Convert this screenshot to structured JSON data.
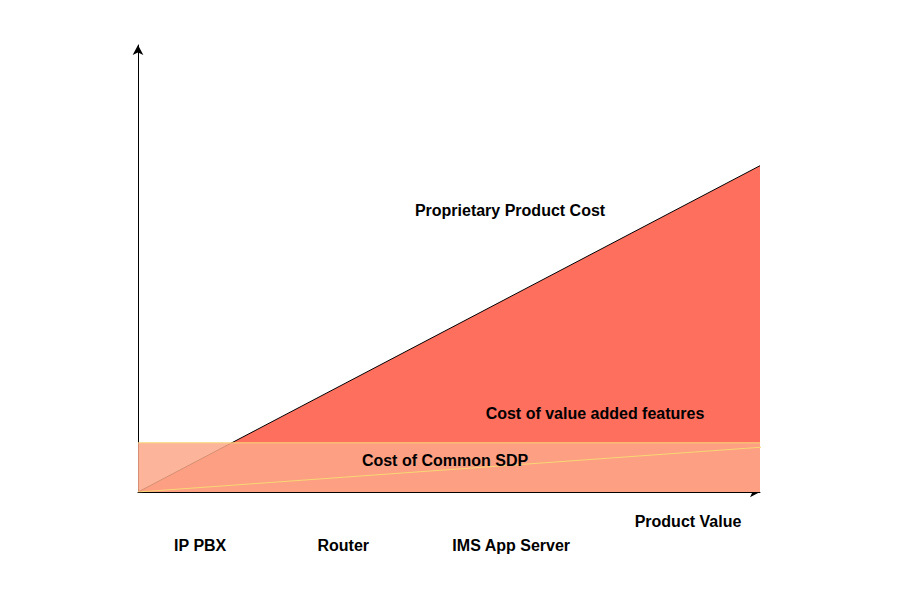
{
  "chart_data": {
    "type": "area",
    "x_label": "Product Value",
    "x": [
      0,
      10
    ],
    "xlim": [
      0,
      10
    ],
    "ylim": [
      0,
      100
    ],
    "tick_labels": false,
    "grid": false,
    "series": [
      {
        "name": "Proprietary Product Cost",
        "type": "area",
        "color": "#ff6f5e",
        "values": [
          0,
          73
        ]
      },
      {
        "name": "Cost of Common SDP",
        "type": "stacked_area",
        "color": "#fba888",
        "values": [
          11,
          11
        ]
      },
      {
        "name": "Cost of value added features",
        "type": "stacked_area",
        "color": "#fba888",
        "values": [
          0,
          20
        ]
      }
    ],
    "annotations": [
      {
        "text": "IP PBX",
        "x": 1
      },
      {
        "text": "Router",
        "x": 3.3
      },
      {
        "text": "IMS App Server",
        "x": 6
      }
    ]
  }
}
